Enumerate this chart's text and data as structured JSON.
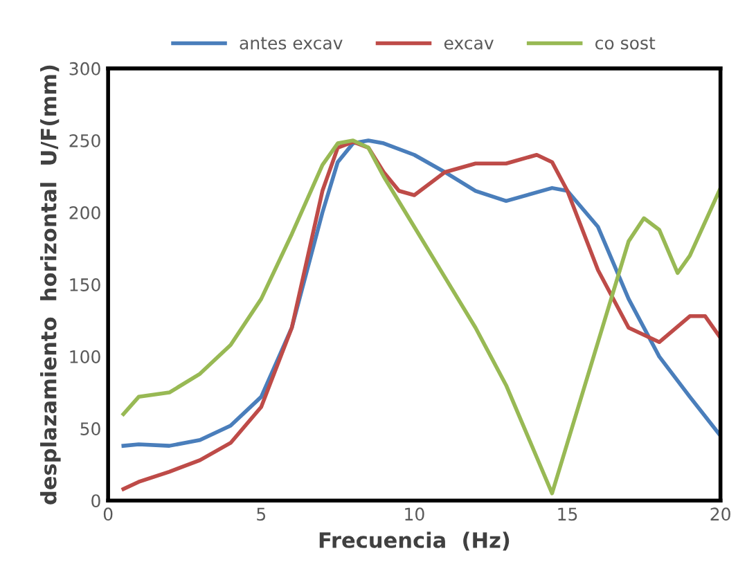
{
  "chart_data": {
    "type": "line",
    "xlabel": "Frecuencia  (Hz)",
    "ylabel": "desplazamiento  horizontal  U/F(mm)",
    "xlim": [
      0,
      20
    ],
    "ylim": [
      0,
      300
    ],
    "xticks": [
      0,
      5,
      10,
      15,
      20
    ],
    "yticks": [
      0,
      50,
      100,
      150,
      200,
      250,
      300
    ],
    "grid": false,
    "legend": "top",
    "marker": "none",
    "line_style": "solid",
    "x": [
      0.5,
      1,
      2,
      3,
      4,
      5,
      6,
      7,
      7.5,
      8,
      8.5,
      9,
      10,
      11,
      12,
      13,
      14,
      14.5,
      15,
      16,
      17,
      18,
      19,
      20
    ],
    "series": [
      {
        "name": "antes excav",
        "color": "#4a7ebb",
        "values": [
          38,
          39,
          38,
          42,
          52,
          72,
          120,
          200,
          235,
          248,
          250,
          248,
          240,
          228,
          215,
          208,
          214,
          217,
          215,
          190,
          140,
          100,
          72,
          45
        ]
      },
      {
        "name": "excav",
        "color": "#be4b48",
        "x": [
          0.5,
          1,
          2,
          3,
          4,
          5,
          6,
          7,
          7.5,
          8,
          8.5,
          9,
          9.5,
          10,
          11,
          12,
          13,
          14,
          14.5,
          15,
          16,
          17,
          18,
          19,
          19.5,
          20
        ],
        "values": [
          8,
          13,
          20,
          28,
          40,
          65,
          120,
          215,
          245,
          249,
          245,
          228,
          215,
          212,
          228,
          234,
          234,
          240,
          235,
          215,
          160,
          120,
          110,
          128,
          128,
          113
        ]
      },
      {
        "name": "co sost",
        "color": "#98b954",
        "x": [
          0.5,
          1,
          2,
          3,
          4,
          5,
          6,
          7,
          7.5,
          8,
          8.5,
          9,
          10,
          11,
          12,
          13,
          14,
          14.5,
          15,
          16,
          17,
          17.5,
          18,
          18.6,
          19,
          20
        ],
        "values": [
          60,
          72,
          75,
          88,
          108,
          140,
          185,
          233,
          248,
          250,
          245,
          225,
          190,
          155,
          120,
          80,
          30,
          5,
          40,
          110,
          180,
          196,
          188,
          158,
          170,
          217
        ]
      }
    ]
  }
}
